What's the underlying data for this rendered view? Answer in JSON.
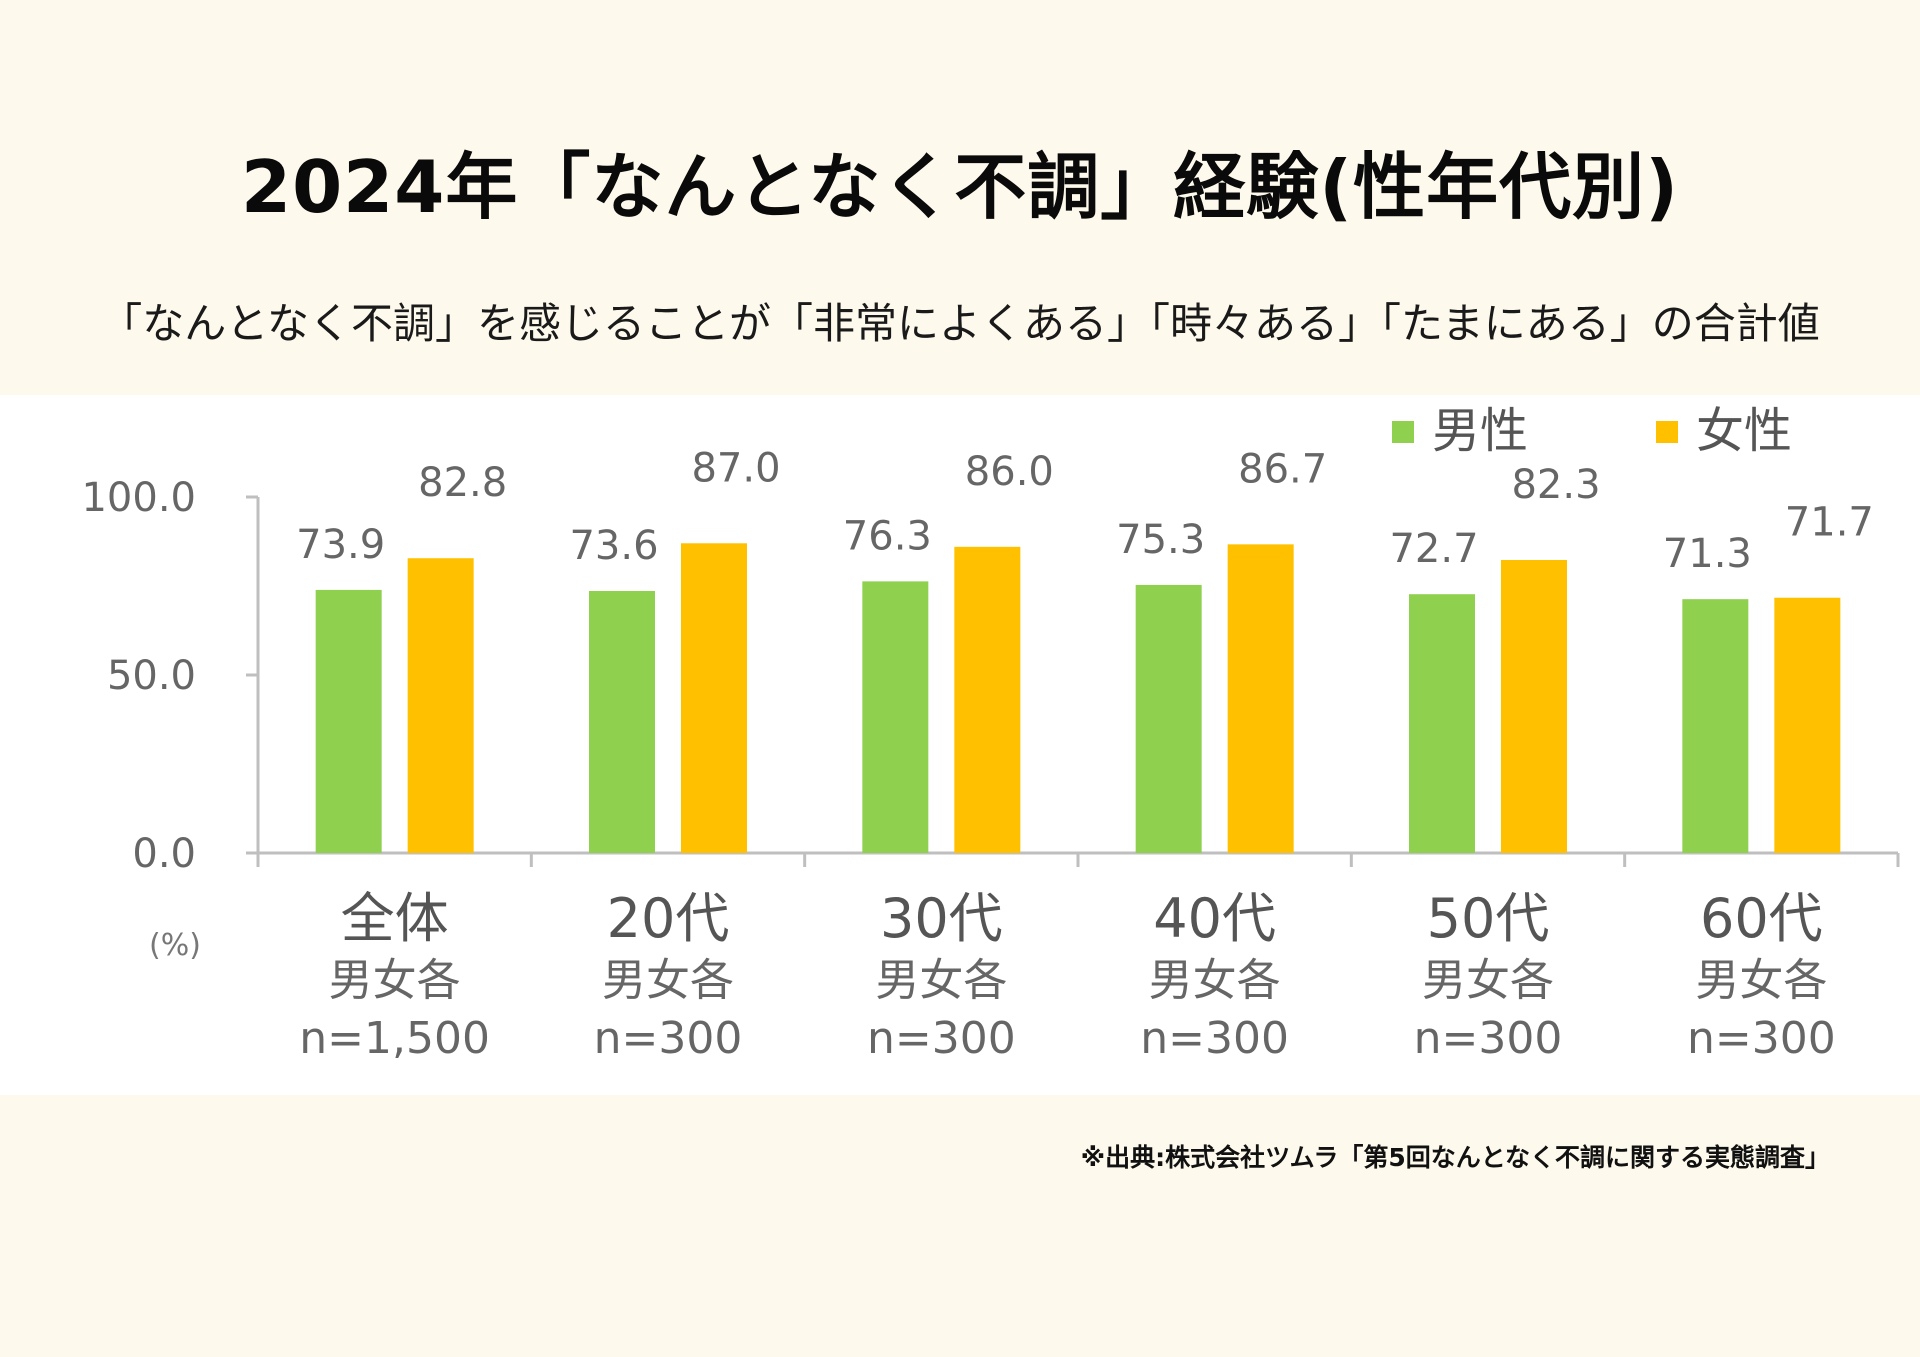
{
  "title": "2024年「なんとなく不調」経験(性年代別)",
  "subtitle": "「なんとなく不調」を感じることが「非常によくある」「時々ある」「たまにある」の合計値",
  "source": "※出典:株式会社ツムラ「第5回なんとなく不調に関する実態調査」",
  "colors": {
    "male": "#8fd14f",
    "female": "#ffc000",
    "axis": "#bfbfbf"
  },
  "chart_data": {
    "type": "bar",
    "unit_label": "(%)",
    "categories": [
      "全体",
      "20代",
      "30代",
      "40代",
      "50代",
      "60代"
    ],
    "category_sub": [
      "男女各",
      "男女各",
      "男女各",
      "男女各",
      "男女各",
      "男女各"
    ],
    "category_n": [
      "n=1,500",
      "n=300",
      "n=300",
      "n=300",
      "n=300",
      "n=300"
    ],
    "series": [
      {
        "name": "男性",
        "values": [
          73.9,
          73.6,
          76.3,
          75.3,
          72.7,
          71.3
        ],
        "labels": [
          "73.9",
          "73.6",
          "76.3",
          "75.3",
          "72.7",
          "71.3"
        ]
      },
      {
        "name": "女性",
        "values": [
          82.8,
          87.0,
          86.0,
          86.7,
          82.3,
          71.7
        ],
        "labels": [
          "82.8",
          "87.0",
          "86.0",
          "86.7",
          "82.3",
          "71.7"
        ]
      }
    ],
    "yticks": [
      0,
      50,
      100
    ],
    "ytick_labels": [
      "0.0",
      "50.0",
      "100.0"
    ],
    "ylim": [
      0,
      100
    ],
    "legend": "top-right"
  }
}
